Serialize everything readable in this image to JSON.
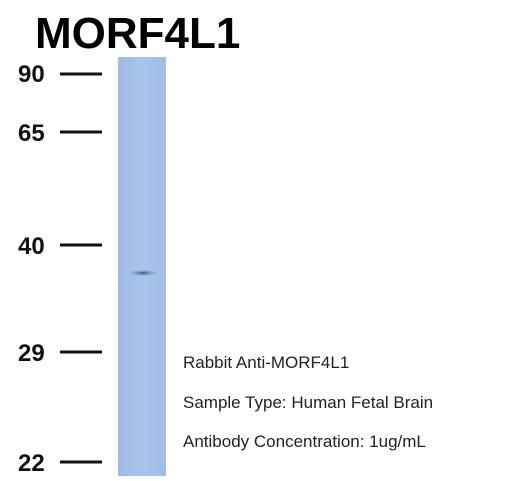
{
  "title": "MORF4L1",
  "markers": [
    "90",
    "65",
    "40",
    "29",
    "22"
  ],
  "annotations": [
    "Rabbit Anti-MORF4L1",
    "Sample Type: Human Fetal Brain",
    "Antibody Concentration: 1ug/mL"
  ]
}
